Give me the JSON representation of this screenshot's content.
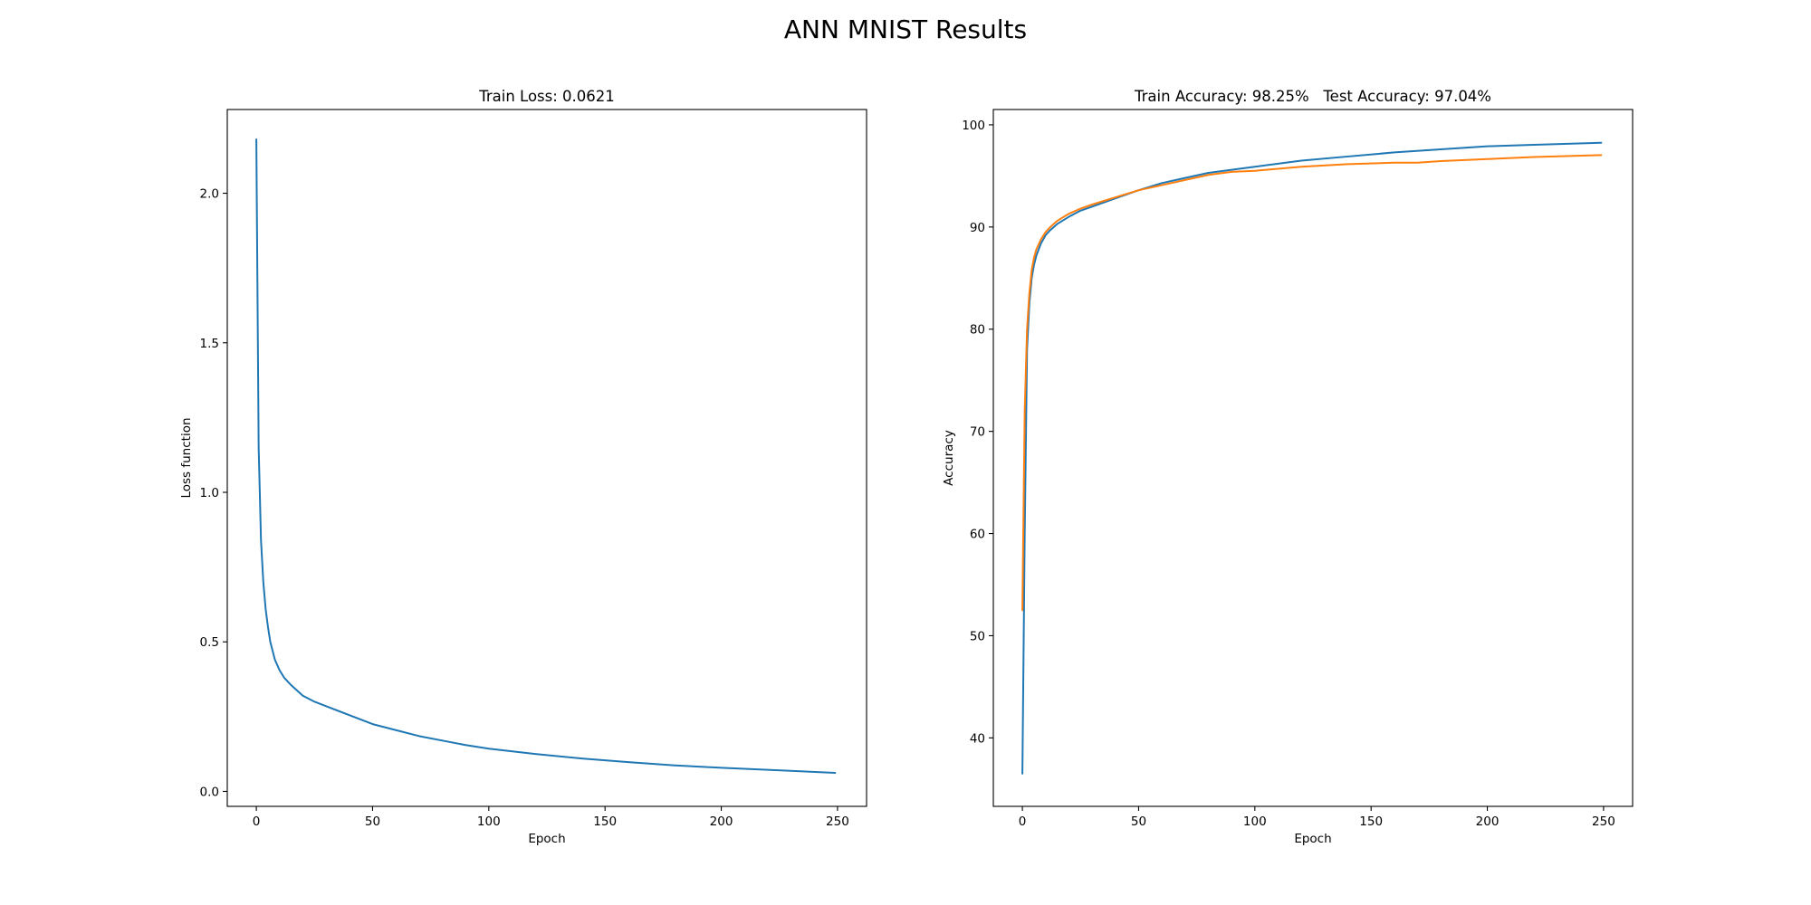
{
  "figure": {
    "title": "ANN MNIST Results"
  },
  "chart_data": [
    {
      "type": "line",
      "title": "Train Loss: 0.0621",
      "xlabel": "Epoch",
      "ylabel": "Loss function",
      "xlim": [
        -12.5,
        262.5
      ],
      "ylim": [
        -0.05,
        2.28
      ],
      "xticks": [
        0,
        50,
        100,
        150,
        200,
        250
      ],
      "xtick_labels": [
        "0",
        "50",
        "100",
        "150",
        "200",
        "250"
      ],
      "yticks": [
        0.0,
        0.5,
        1.0,
        1.5,
        2.0
      ],
      "ytick_labels": [
        "0.0",
        "0.5",
        "1.0",
        "1.5",
        "2.0"
      ],
      "grid": false,
      "series": [
        {
          "color": "#1f77b4",
          "x": [
            0,
            1,
            2,
            3,
            4,
            5,
            6,
            7,
            8,
            10,
            12,
            15,
            20,
            25,
            30,
            40,
            50,
            60,
            70,
            80,
            90,
            100,
            120,
            140,
            160,
            180,
            200,
            220,
            249
          ],
          "y": [
            2.18,
            1.15,
            0.84,
            0.7,
            0.61,
            0.55,
            0.5,
            0.47,
            0.44,
            0.405,
            0.38,
            0.355,
            0.32,
            0.3,
            0.285,
            0.255,
            0.225,
            0.205,
            0.185,
            0.17,
            0.155,
            0.143,
            0.125,
            0.11,
            0.098,
            0.087,
            0.079,
            0.072,
            0.062
          ]
        }
      ]
    },
    {
      "type": "line",
      "title": "Train Accuracy: 98.25%   Test Accuracy: 97.04%",
      "xlabel": "Epoch",
      "ylabel": "Accuracy",
      "xlim": [
        -12.5,
        262.5
      ],
      "ylim": [
        33.3,
        101.5
      ],
      "xticks": [
        0,
        50,
        100,
        150,
        200,
        250
      ],
      "xtick_labels": [
        "0",
        "50",
        "100",
        "150",
        "200",
        "250"
      ],
      "yticks": [
        40,
        50,
        60,
        70,
        80,
        90,
        100
      ],
      "ytick_labels": [
        "40",
        "50",
        "60",
        "70",
        "80",
        "90",
        "100"
      ],
      "grid": false,
      "series": [
        {
          "color": "#1f77b4",
          "x": [
            0,
            1,
            2,
            3,
            4,
            5,
            6,
            8,
            10,
            12,
            15,
            20,
            25,
            30,
            40,
            50,
            60,
            70,
            80,
            90,
            100,
            120,
            140,
            160,
            180,
            200,
            220,
            249
          ],
          "y": [
            36.5,
            60.0,
            78.0,
            82.5,
            85.0,
            86.3,
            87.2,
            88.4,
            89.2,
            89.7,
            90.3,
            91.0,
            91.6,
            92.0,
            92.8,
            93.6,
            94.3,
            94.8,
            95.3,
            95.6,
            95.9,
            96.5,
            96.9,
            97.3,
            97.6,
            97.9,
            98.05,
            98.25
          ]
        },
        {
          "color": "#ff7f0e",
          "x": [
            0,
            1,
            2,
            3,
            4,
            5,
            6,
            8,
            10,
            12,
            15,
            20,
            25,
            30,
            40,
            50,
            60,
            70,
            80,
            90,
            100,
            120,
            140,
            160,
            170,
            180,
            200,
            220,
            249
          ],
          "y": [
            52.5,
            72.0,
            80.0,
            83.5,
            85.8,
            87.0,
            87.8,
            88.8,
            89.5,
            90.0,
            90.6,
            91.3,
            91.8,
            92.2,
            92.9,
            93.6,
            94.1,
            94.6,
            95.1,
            95.4,
            95.5,
            95.9,
            96.15,
            96.3,
            96.3,
            96.45,
            96.65,
            96.85,
            97.04
          ]
        }
      ]
    }
  ]
}
